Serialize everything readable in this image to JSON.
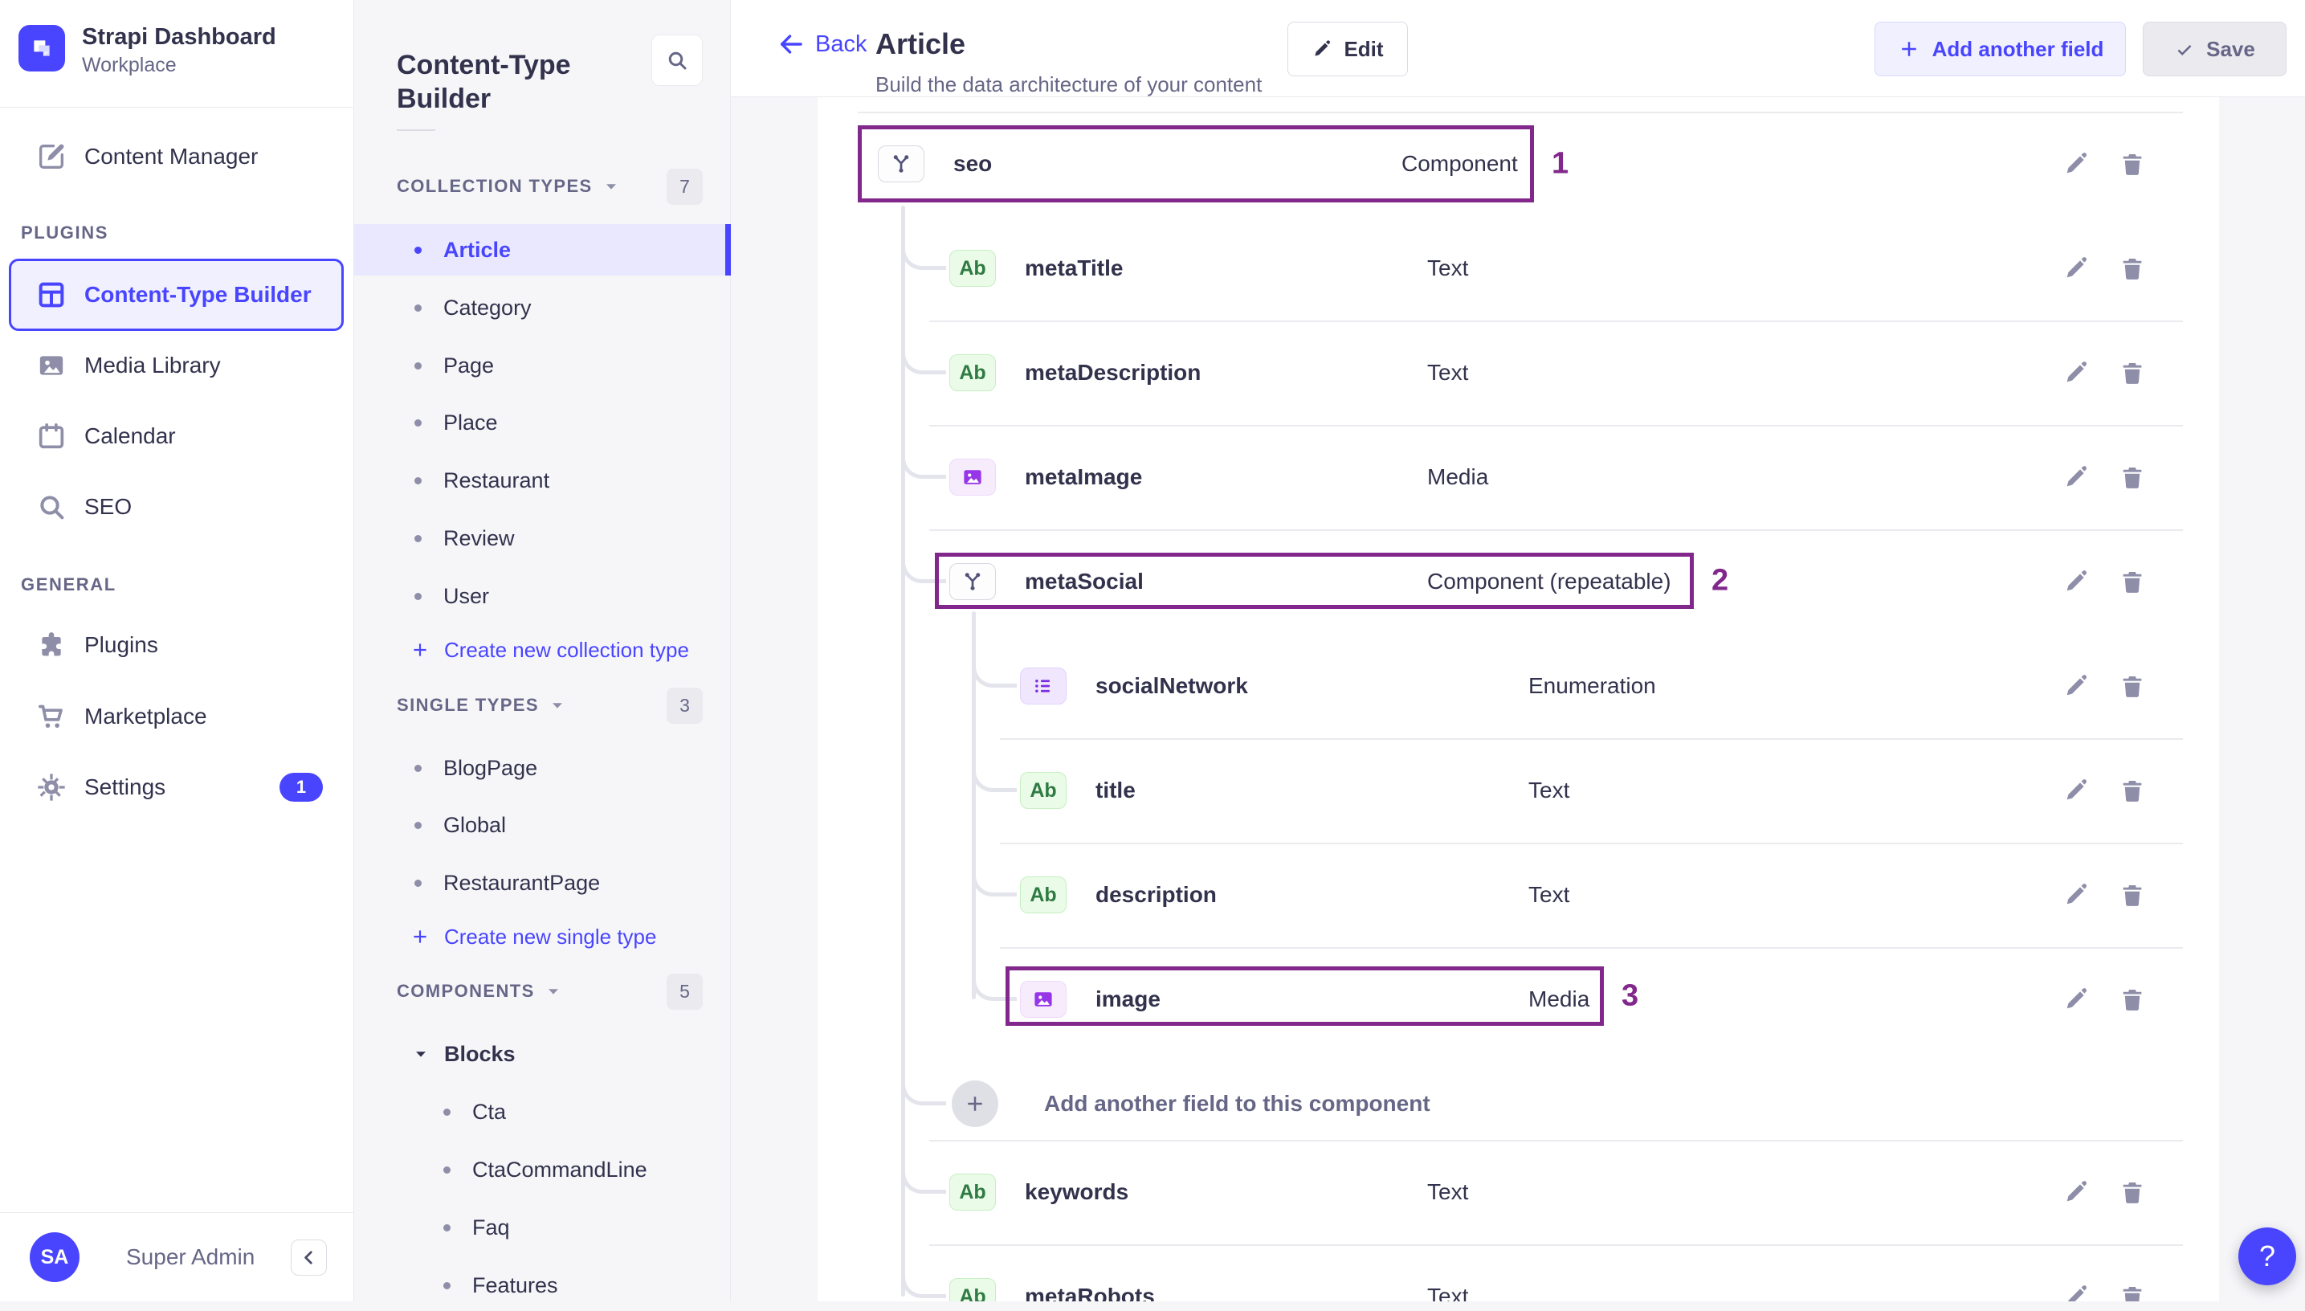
{
  "brand": {
    "title": "Strapi Dashboard",
    "subtitle": "Workplace"
  },
  "main_nav": {
    "top_items": [
      {
        "label": "Content Manager",
        "icon": "feather"
      }
    ],
    "sections": [
      {
        "label": "PLUGINS",
        "items": [
          {
            "label": "Content-Type Builder",
            "icon": "grid",
            "selected": true
          },
          {
            "label": "Media Library",
            "icon": "image"
          },
          {
            "label": "Calendar",
            "icon": "calendar"
          },
          {
            "label": "SEO",
            "icon": "search"
          }
        ]
      },
      {
        "label": "GENERAL",
        "items": [
          {
            "label": "Plugins",
            "icon": "puzzle"
          },
          {
            "label": "Marketplace",
            "icon": "cart"
          },
          {
            "label": "Settings",
            "icon": "gear",
            "badge": "1"
          }
        ]
      }
    ]
  },
  "user": {
    "initials": "SA",
    "name": "Super Admin"
  },
  "builder_nav": {
    "title": "Content-Type Builder",
    "sections": [
      {
        "label": "COLLECTION TYPES",
        "count": "7",
        "items": [
          "Article",
          "Category",
          "Page",
          "Place",
          "Restaurant",
          "Review",
          "User"
        ],
        "selected": "Article",
        "create": "Create new collection type"
      },
      {
        "label": "SINGLE TYPES",
        "count": "3",
        "items": [
          "BlogPage",
          "Global",
          "RestaurantPage"
        ],
        "create": "Create new single type"
      },
      {
        "label": "COMPONENTS",
        "count": "5",
        "group": "Blocks",
        "items": [
          "Cta",
          "CtaCommandLine",
          "Faq",
          "Features"
        ]
      }
    ]
  },
  "header": {
    "back": "Back",
    "title": "Article",
    "subtitle": "Build the data architecture of your content",
    "edit": "Edit",
    "add_field": "Add another field",
    "save": "Save"
  },
  "fields": [
    {
      "name": "seo",
      "type": "Component",
      "icon": "component",
      "level": 0,
      "annotation": "1"
    },
    {
      "name": "metaTitle",
      "type": "Text",
      "icon": "text",
      "level": 1,
      "first": true
    },
    {
      "name": "metaDescription",
      "type": "Text",
      "icon": "text",
      "level": 1
    },
    {
      "name": "metaImage",
      "type": "Media",
      "icon": "media",
      "level": 1
    },
    {
      "name": "metaSocial",
      "type": "Component (repeatable)",
      "icon": "component",
      "level": 1,
      "annotation": "2"
    },
    {
      "name": "socialNetwork",
      "type": "Enumeration",
      "icon": "enum",
      "level": 2,
      "first": true
    },
    {
      "name": "title",
      "type": "Text",
      "icon": "text",
      "level": 2
    },
    {
      "name": "description",
      "type": "Text",
      "icon": "text",
      "level": 2
    },
    {
      "name": "image",
      "type": "Media",
      "icon": "media",
      "level": 2,
      "annotation": "3"
    },
    {
      "name": "keywords",
      "type": "Text",
      "icon": "text",
      "level": 1
    },
    {
      "name": "metaRobots",
      "type": "Text",
      "icon": "text",
      "level": 1
    }
  ],
  "add_component_field": "Add another field to this component",
  "help": "?"
}
